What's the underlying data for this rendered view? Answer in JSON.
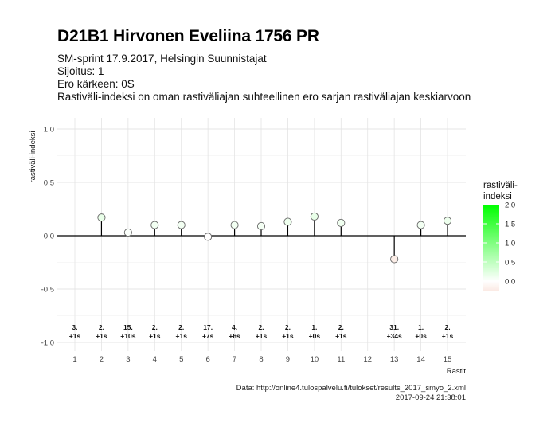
{
  "header": {
    "title": "D21B1 Hirvonen Eveliina 1756 PR",
    "subtitle_lines": [
      "SM-sprint 17.9.2017, Helsingin Suunnistajat",
      "Sijoitus: 1",
      "Ero kärkeen: 0S",
      "Rastiväli-indeksi on oman rastiväliajan suhteellinen ero sarjan rastiväliajan keskiarvoon"
    ]
  },
  "caption": {
    "source": "Data: http://online4.tulospalvelu.fi/tulokset/results_2017_smyo_2.xml",
    "timestamp": "2017-09-24 21:38:01"
  },
  "chart_data": {
    "type": "scatter",
    "style": "lollipop",
    "xlabel": "Rastit",
    "ylabel": "rastiväli-indeksi",
    "ylim": [
      -1.0,
      1.0
    ],
    "yticks": [
      -1.0,
      -0.5,
      0.0,
      0.5,
      1.0
    ],
    "ytick_labels": [
      "-1.0",
      "-0.5",
      "0.0",
      "0.5",
      "1.0"
    ],
    "x": [
      1,
      2,
      3,
      4,
      5,
      6,
      7,
      8,
      9,
      10,
      11,
      12,
      13,
      14,
      15
    ],
    "xtick_labels": [
      "1",
      "2",
      "3",
      "4",
      "5",
      "6",
      "7",
      "8",
      "9",
      "10",
      "11",
      "12",
      "13",
      "14",
      "15"
    ],
    "grid": true,
    "points": [
      {
        "x": 2,
        "y": 0.17
      },
      {
        "x": 3,
        "y": 0.03
      },
      {
        "x": 4,
        "y": 0.1
      },
      {
        "x": 5,
        "y": 0.1
      },
      {
        "x": 6,
        "y": -0.01
      },
      {
        "x": 7,
        "y": 0.1
      },
      {
        "x": 8,
        "y": 0.09
      },
      {
        "x": 9,
        "y": 0.13
      },
      {
        "x": 10,
        "y": 0.18
      },
      {
        "x": 11,
        "y": 0.12
      },
      {
        "x": 13,
        "y": -0.22
      },
      {
        "x": 14,
        "y": 0.1
      },
      {
        "x": 15,
        "y": 0.14
      }
    ],
    "annotations": [
      {
        "x": 1,
        "rank": "3.",
        "diff": "+1s"
      },
      {
        "x": 2,
        "rank": "2.",
        "diff": "+1s"
      },
      {
        "x": 3,
        "rank": "15.",
        "diff": "+10s"
      },
      {
        "x": 4,
        "rank": "2.",
        "diff": "+1s"
      },
      {
        "x": 5,
        "rank": "2.",
        "diff": "+1s"
      },
      {
        "x": 6,
        "rank": "17.",
        "diff": "+7s"
      },
      {
        "x": 7,
        "rank": "4.",
        "diff": "+6s"
      },
      {
        "x": 8,
        "rank": "2.",
        "diff": "+1s"
      },
      {
        "x": 9,
        "rank": "2.",
        "diff": "+1s"
      },
      {
        "x": 10,
        "rank": "1.",
        "diff": "+0s"
      },
      {
        "x": 11,
        "rank": "2.",
        "diff": "+1s"
      },
      {
        "x": 13,
        "rank": "31.",
        "diff": "+34s"
      },
      {
        "x": 14,
        "rank": "1.",
        "diff": "+0s"
      },
      {
        "x": 15,
        "rank": "2.",
        "diff": "+1s"
      }
    ],
    "legend": {
      "title_lines": [
        "rastiväli-",
        "indeksi"
      ],
      "placement": "right",
      "range": [
        -0.25,
        2.0
      ],
      "ticks": [
        0.0,
        0.5,
        1.0,
        1.5,
        2.0
      ],
      "tick_labels": [
        "0.0",
        "0.5",
        "1.0",
        "1.5",
        "2.0"
      ],
      "color_low": "#fbeae4",
      "color_mid": "#ffffff",
      "color_high": "#00ff00"
    }
  }
}
